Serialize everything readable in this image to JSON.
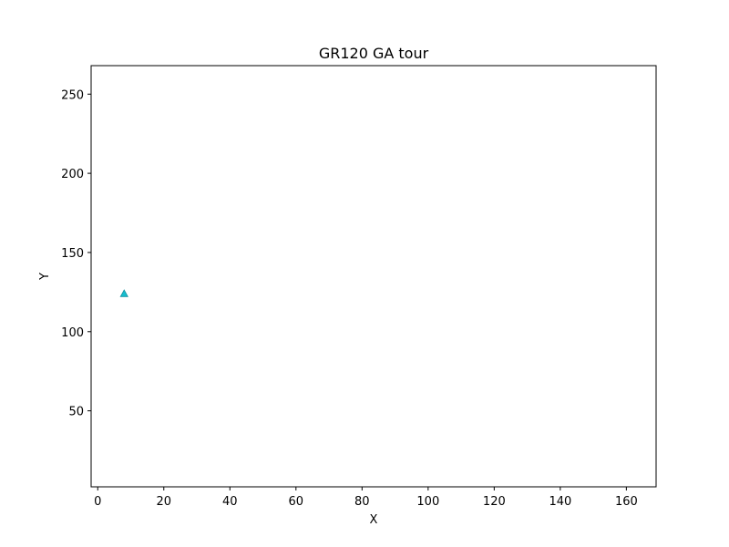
{
  "chart_data": {
    "type": "scatter",
    "title": "GR120 GA tour",
    "xlabel": "X",
    "ylabel": "Y",
    "xlim": [
      -2,
      169
    ],
    "ylim": [
      2,
      268
    ],
    "xticks": [
      0,
      20,
      40,
      60,
      80,
      100,
      120,
      140,
      160
    ],
    "yticks": [
      50,
      100,
      150,
      200,
      250
    ],
    "grid": false,
    "series": [
      {
        "marker": "triangle",
        "color": "#17becf",
        "points": [
          {
            "x": 8,
            "y": 124
          }
        ]
      }
    ]
  }
}
